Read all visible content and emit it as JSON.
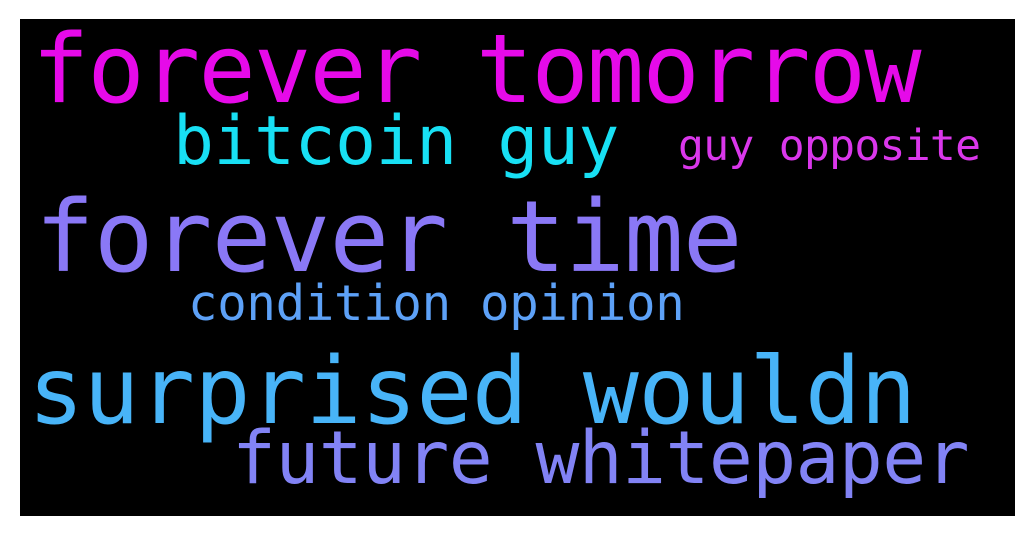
{
  "words": [
    {
      "text": "forever tomorrow",
      "color": "#e60ae9"
    },
    {
      "text": "bitcoin guy",
      "color": "#18e0f4"
    },
    {
      "text": "guy opposite",
      "color": "#da37eb"
    },
    {
      "text": "forever time",
      "color": "#8a78f6"
    },
    {
      "text": "condition opinion",
      "color": "#5da1f7"
    },
    {
      "text": "surprised wouldn",
      "color": "#48b4f8"
    },
    {
      "text": "future whitepaper",
      "color": "#8283f5"
    }
  ],
  "background_color": "#000000"
}
